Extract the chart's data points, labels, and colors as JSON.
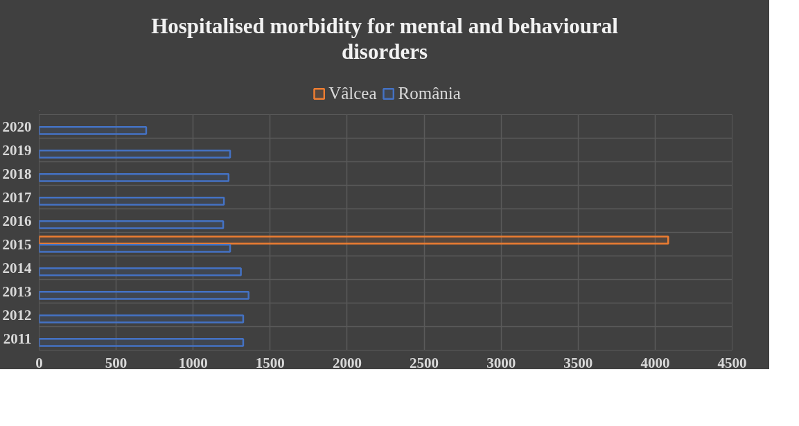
{
  "chart_data": {
    "type": "bar",
    "orientation": "horizontal",
    "title": "Hospitalised morbidity for mental and behavioural disorders",
    "categories": [
      "2020",
      "2019",
      "2018",
      "2017",
      "2016",
      "2015",
      "2014",
      "2013",
      "2012",
      "2011"
    ],
    "series": [
      {
        "name": "Vâlcea",
        "color": "#ed7d31",
        "values": [
          null,
          null,
          null,
          null,
          null,
          4085,
          null,
          null,
          null,
          null
        ]
      },
      {
        "name": "România",
        "color": "#4472c4",
        "values": [
          695,
          1240,
          1230,
          1200,
          1195,
          1240,
          1310,
          1360,
          1325,
          1325
        ]
      }
    ],
    "xlim": [
      0,
      4500
    ],
    "xticks": [
      0,
      500,
      1000,
      1500,
      2000,
      2500,
      3000,
      3500,
      4000,
      4500
    ],
    "grid": true,
    "legend": "top"
  }
}
